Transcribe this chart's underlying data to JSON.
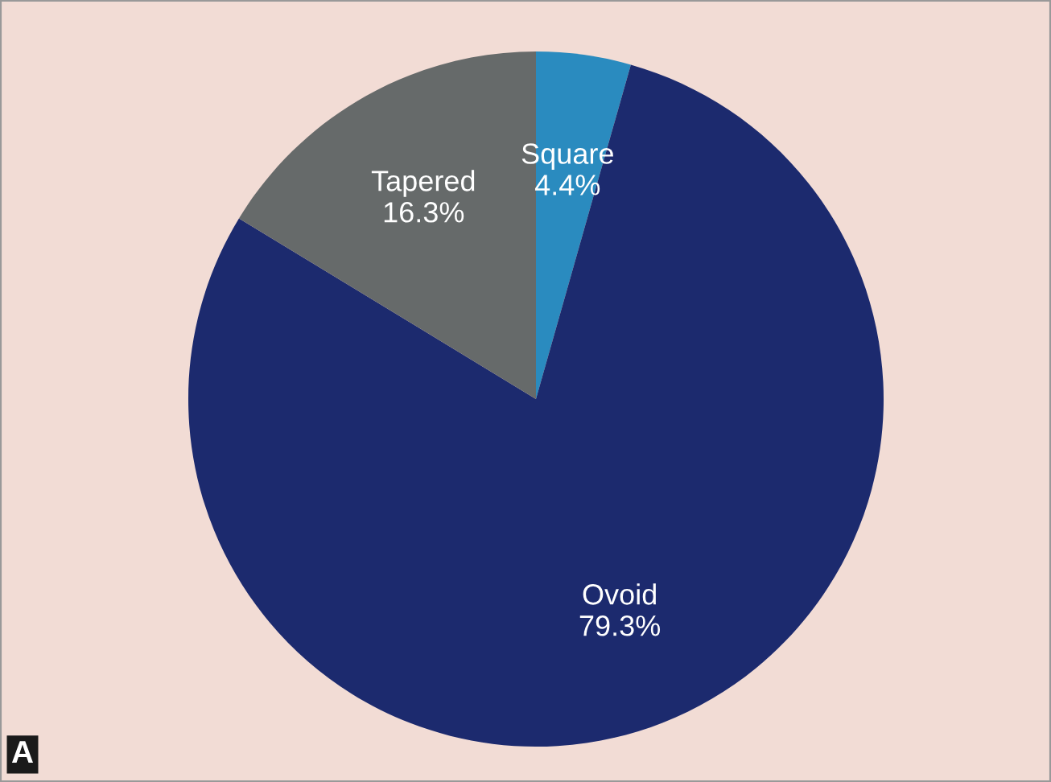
{
  "chart_data": {
    "type": "pie",
    "categories": [
      "Square",
      "Ovoid",
      "Tapered"
    ],
    "values": [
      4.4,
      79.3,
      16.3
    ],
    "value_labels": [
      "4.4%",
      "79.3%",
      "16.3%"
    ],
    "colors": [
      "#2a8bbf",
      "#1c2a6e",
      "#666a6a"
    ],
    "annotations": [
      "A"
    ]
  }
}
